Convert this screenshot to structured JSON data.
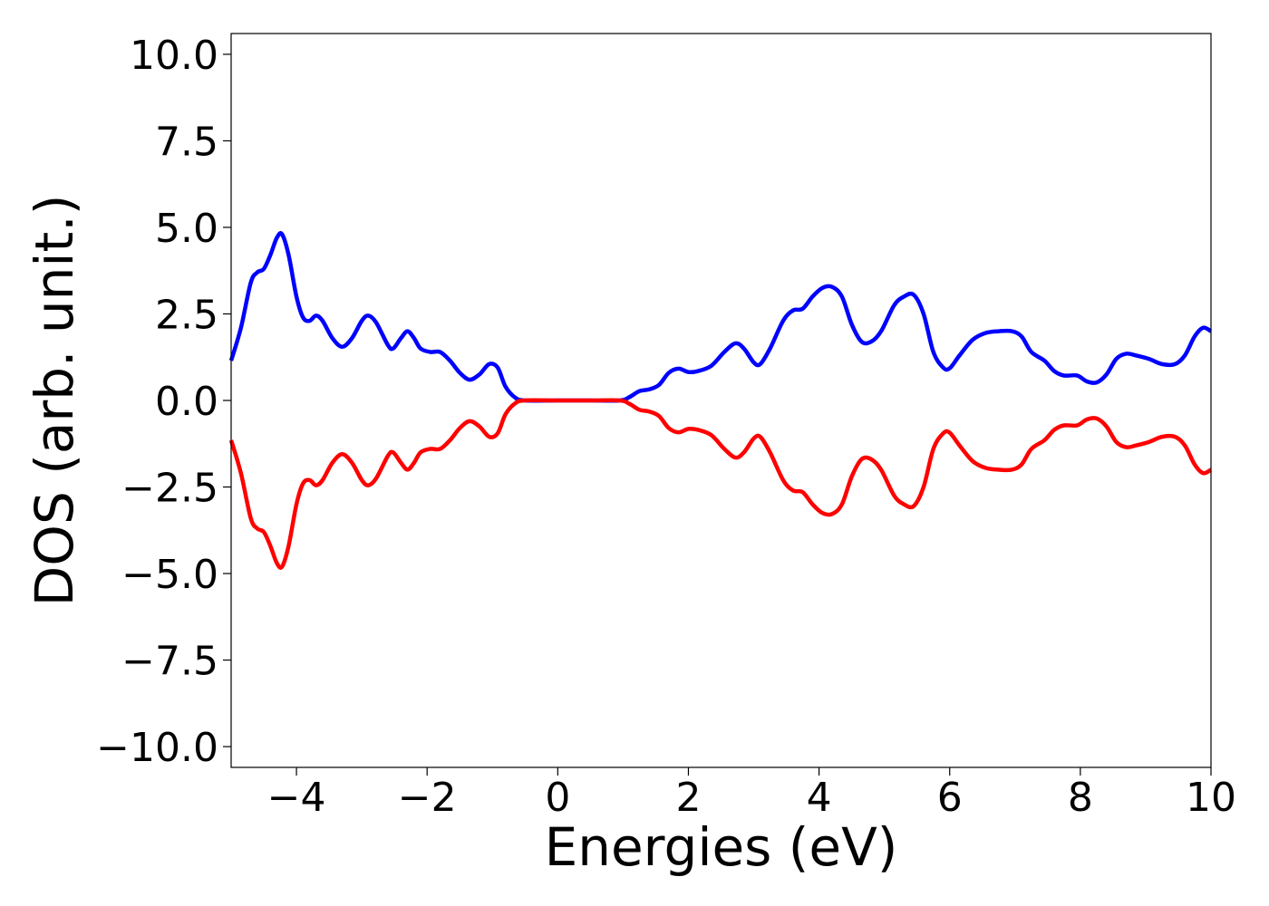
{
  "chart_data": {
    "type": "line",
    "title": "",
    "xlabel": "Energies (eV)",
    "ylabel": "DOS (arb. unit.)",
    "xlim": [
      -5,
      10
    ],
    "ylim": [
      -10.6,
      10.6
    ],
    "xticks": [
      -4,
      -2,
      0,
      2,
      4,
      6,
      8,
      10
    ],
    "xtick_labels": [
      "−4",
      "−2",
      "0",
      "2",
      "4",
      "6",
      "8",
      "10"
    ],
    "yticks": [
      10.0,
      7.5,
      5.0,
      2.5,
      0.0,
      -2.5,
      -5.0,
      -7.5,
      -10.0
    ],
    "ytick_labels": [
      "10.0",
      "7.5",
      "5.0",
      "2.5",
      "0.0",
      "−2.5",
      "−5.0",
      "−7.5",
      "−10.0"
    ],
    "grid": false,
    "legend": "none",
    "series": [
      {
        "color": "#0000ff",
        "points": [
          [
            -5.0,
            1.15
          ],
          [
            -4.85,
            2.1
          ],
          [
            -4.7,
            3.4
          ],
          [
            -4.6,
            3.7
          ],
          [
            -4.5,
            3.8
          ],
          [
            -4.4,
            4.2
          ],
          [
            -4.3,
            4.7
          ],
          [
            -4.22,
            4.8
          ],
          [
            -4.12,
            4.2
          ],
          [
            -4.0,
            3.0
          ],
          [
            -3.9,
            2.4
          ],
          [
            -3.8,
            2.3
          ],
          [
            -3.7,
            2.45
          ],
          [
            -3.6,
            2.3
          ],
          [
            -3.45,
            1.8
          ],
          [
            -3.3,
            1.55
          ],
          [
            -3.15,
            1.8
          ],
          [
            -3.0,
            2.3
          ],
          [
            -2.9,
            2.45
          ],
          [
            -2.78,
            2.25
          ],
          [
            -2.6,
            1.6
          ],
          [
            -2.52,
            1.5
          ],
          [
            -2.4,
            1.8
          ],
          [
            -2.3,
            2.0
          ],
          [
            -2.2,
            1.8
          ],
          [
            -2.1,
            1.5
          ],
          [
            -1.95,
            1.4
          ],
          [
            -1.8,
            1.4
          ],
          [
            -1.65,
            1.15
          ],
          [
            -1.5,
            0.8
          ],
          [
            -1.35,
            0.6
          ],
          [
            -1.2,
            0.75
          ],
          [
            -1.05,
            1.05
          ],
          [
            -0.92,
            0.95
          ],
          [
            -0.8,
            0.4
          ],
          [
            -0.65,
            0.08
          ],
          [
            -0.5,
            0.0
          ],
          [
            0.0,
            0.0
          ],
          [
            0.5,
            0.0
          ],
          [
            0.95,
            0.0
          ],
          [
            1.1,
            0.1
          ],
          [
            1.25,
            0.27
          ],
          [
            1.4,
            0.32
          ],
          [
            1.55,
            0.45
          ],
          [
            1.7,
            0.8
          ],
          [
            1.85,
            0.92
          ],
          [
            2.0,
            0.82
          ],
          [
            2.15,
            0.85
          ],
          [
            2.35,
            1.0
          ],
          [
            2.55,
            1.4
          ],
          [
            2.72,
            1.65
          ],
          [
            2.85,
            1.5
          ],
          [
            3.0,
            1.1
          ],
          [
            3.1,
            1.05
          ],
          [
            3.25,
            1.5
          ],
          [
            3.45,
            2.3
          ],
          [
            3.6,
            2.6
          ],
          [
            3.75,
            2.65
          ],
          [
            3.9,
            3.0
          ],
          [
            4.05,
            3.25
          ],
          [
            4.2,
            3.28
          ],
          [
            4.35,
            3.0
          ],
          [
            4.5,
            2.2
          ],
          [
            4.65,
            1.7
          ],
          [
            4.8,
            1.7
          ],
          [
            4.95,
            2.0
          ],
          [
            5.15,
            2.75
          ],
          [
            5.3,
            3.0
          ],
          [
            5.45,
            3.05
          ],
          [
            5.6,
            2.5
          ],
          [
            5.75,
            1.4
          ],
          [
            5.9,
            0.95
          ],
          [
            6.0,
            0.93
          ],
          [
            6.15,
            1.3
          ],
          [
            6.35,
            1.75
          ],
          [
            6.55,
            1.95
          ],
          [
            6.75,
            2.0
          ],
          [
            6.95,
            2.0
          ],
          [
            7.1,
            1.85
          ],
          [
            7.25,
            1.4
          ],
          [
            7.45,
            1.15
          ],
          [
            7.6,
            0.85
          ],
          [
            7.75,
            0.72
          ],
          [
            7.95,
            0.72
          ],
          [
            8.1,
            0.55
          ],
          [
            8.25,
            0.52
          ],
          [
            8.4,
            0.75
          ],
          [
            8.55,
            1.2
          ],
          [
            8.7,
            1.35
          ],
          [
            8.85,
            1.3
          ],
          [
            9.05,
            1.2
          ],
          [
            9.25,
            1.05
          ],
          [
            9.45,
            1.05
          ],
          [
            9.6,
            1.3
          ],
          [
            9.75,
            1.85
          ],
          [
            9.88,
            2.1
          ],
          [
            10.0,
            2.0
          ]
        ]
      },
      {
        "color": "#ff0000",
        "points": [
          [
            -5.0,
            -1.15
          ],
          [
            -4.85,
            -2.1
          ],
          [
            -4.7,
            -3.4
          ],
          [
            -4.6,
            -3.7
          ],
          [
            -4.5,
            -3.8
          ],
          [
            -4.4,
            -4.2
          ],
          [
            -4.3,
            -4.7
          ],
          [
            -4.22,
            -4.8
          ],
          [
            -4.12,
            -4.2
          ],
          [
            -4.0,
            -3.0
          ],
          [
            -3.9,
            -2.4
          ],
          [
            -3.8,
            -2.3
          ],
          [
            -3.7,
            -2.45
          ],
          [
            -3.6,
            -2.3
          ],
          [
            -3.45,
            -1.8
          ],
          [
            -3.3,
            -1.55
          ],
          [
            -3.15,
            -1.8
          ],
          [
            -3.0,
            -2.3
          ],
          [
            -2.9,
            -2.45
          ],
          [
            -2.78,
            -2.25
          ],
          [
            -2.6,
            -1.6
          ],
          [
            -2.52,
            -1.5
          ],
          [
            -2.4,
            -1.8
          ],
          [
            -2.3,
            -2.0
          ],
          [
            -2.2,
            -1.8
          ],
          [
            -2.1,
            -1.5
          ],
          [
            -1.95,
            -1.4
          ],
          [
            -1.8,
            -1.4
          ],
          [
            -1.65,
            -1.15
          ],
          [
            -1.5,
            -0.8
          ],
          [
            -1.35,
            -0.6
          ],
          [
            -1.2,
            -0.75
          ],
          [
            -1.05,
            -1.05
          ],
          [
            -0.92,
            -0.95
          ],
          [
            -0.8,
            -0.4
          ],
          [
            -0.65,
            -0.08
          ],
          [
            -0.5,
            0.0
          ],
          [
            0.0,
            0.0
          ],
          [
            0.5,
            0.0
          ],
          [
            0.95,
            0.0
          ],
          [
            1.1,
            -0.1
          ],
          [
            1.25,
            -0.27
          ],
          [
            1.4,
            -0.32
          ],
          [
            1.55,
            -0.45
          ],
          [
            1.7,
            -0.8
          ],
          [
            1.85,
            -0.92
          ],
          [
            2.0,
            -0.82
          ],
          [
            2.15,
            -0.85
          ],
          [
            2.35,
            -1.0
          ],
          [
            2.55,
            -1.4
          ],
          [
            2.72,
            -1.65
          ],
          [
            2.85,
            -1.5
          ],
          [
            3.0,
            -1.1
          ],
          [
            3.1,
            -1.05
          ],
          [
            3.25,
            -1.5
          ],
          [
            3.45,
            -2.3
          ],
          [
            3.6,
            -2.6
          ],
          [
            3.75,
            -2.65
          ],
          [
            3.9,
            -3.0
          ],
          [
            4.05,
            -3.25
          ],
          [
            4.2,
            -3.28
          ],
          [
            4.35,
            -3.0
          ],
          [
            4.5,
            -2.2
          ],
          [
            4.65,
            -1.7
          ],
          [
            4.8,
            -1.7
          ],
          [
            4.95,
            -2.0
          ],
          [
            5.15,
            -2.75
          ],
          [
            5.3,
            -3.0
          ],
          [
            5.45,
            -3.05
          ],
          [
            5.6,
            -2.5
          ],
          [
            5.75,
            -1.4
          ],
          [
            5.9,
            -0.95
          ],
          [
            6.0,
            -0.93
          ],
          [
            6.15,
            -1.3
          ],
          [
            6.35,
            -1.75
          ],
          [
            6.55,
            -1.95
          ],
          [
            6.75,
            -2.0
          ],
          [
            6.95,
            -2.0
          ],
          [
            7.1,
            -1.85
          ],
          [
            7.25,
            -1.4
          ],
          [
            7.45,
            -1.15
          ],
          [
            7.6,
            -0.85
          ],
          [
            7.75,
            -0.72
          ],
          [
            7.95,
            -0.72
          ],
          [
            8.1,
            -0.55
          ],
          [
            8.25,
            -0.52
          ],
          [
            8.4,
            -0.75
          ],
          [
            8.55,
            -1.2
          ],
          [
            8.7,
            -1.35
          ],
          [
            8.85,
            -1.3
          ],
          [
            9.05,
            -1.2
          ],
          [
            9.25,
            -1.05
          ],
          [
            9.45,
            -1.05
          ],
          [
            9.6,
            -1.3
          ],
          [
            9.75,
            -1.85
          ],
          [
            9.88,
            -2.1
          ],
          [
            10.0,
            -2.0
          ]
        ]
      }
    ]
  }
}
